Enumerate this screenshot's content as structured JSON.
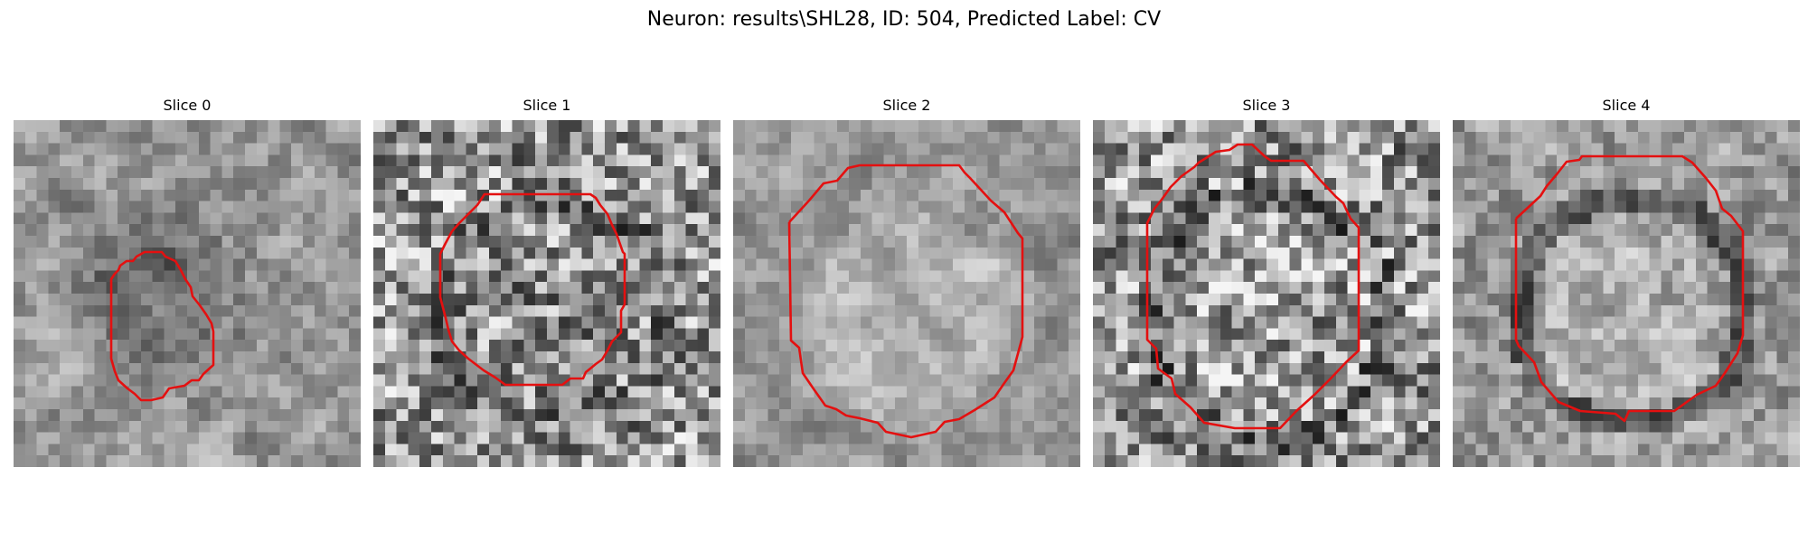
{
  "figure": {
    "title": "Neuron: results\\SHL28, ID: 504, Predicted Label: CV"
  },
  "slices": [
    {
      "title": "Slice 0"
    },
    {
      "title": "Slice 1"
    },
    {
      "title": "Slice 2"
    },
    {
      "title": "Slice 3"
    },
    {
      "title": "Slice 4"
    }
  ],
  "colors": {
    "contour": "#e41010",
    "colormap": "gray"
  }
}
